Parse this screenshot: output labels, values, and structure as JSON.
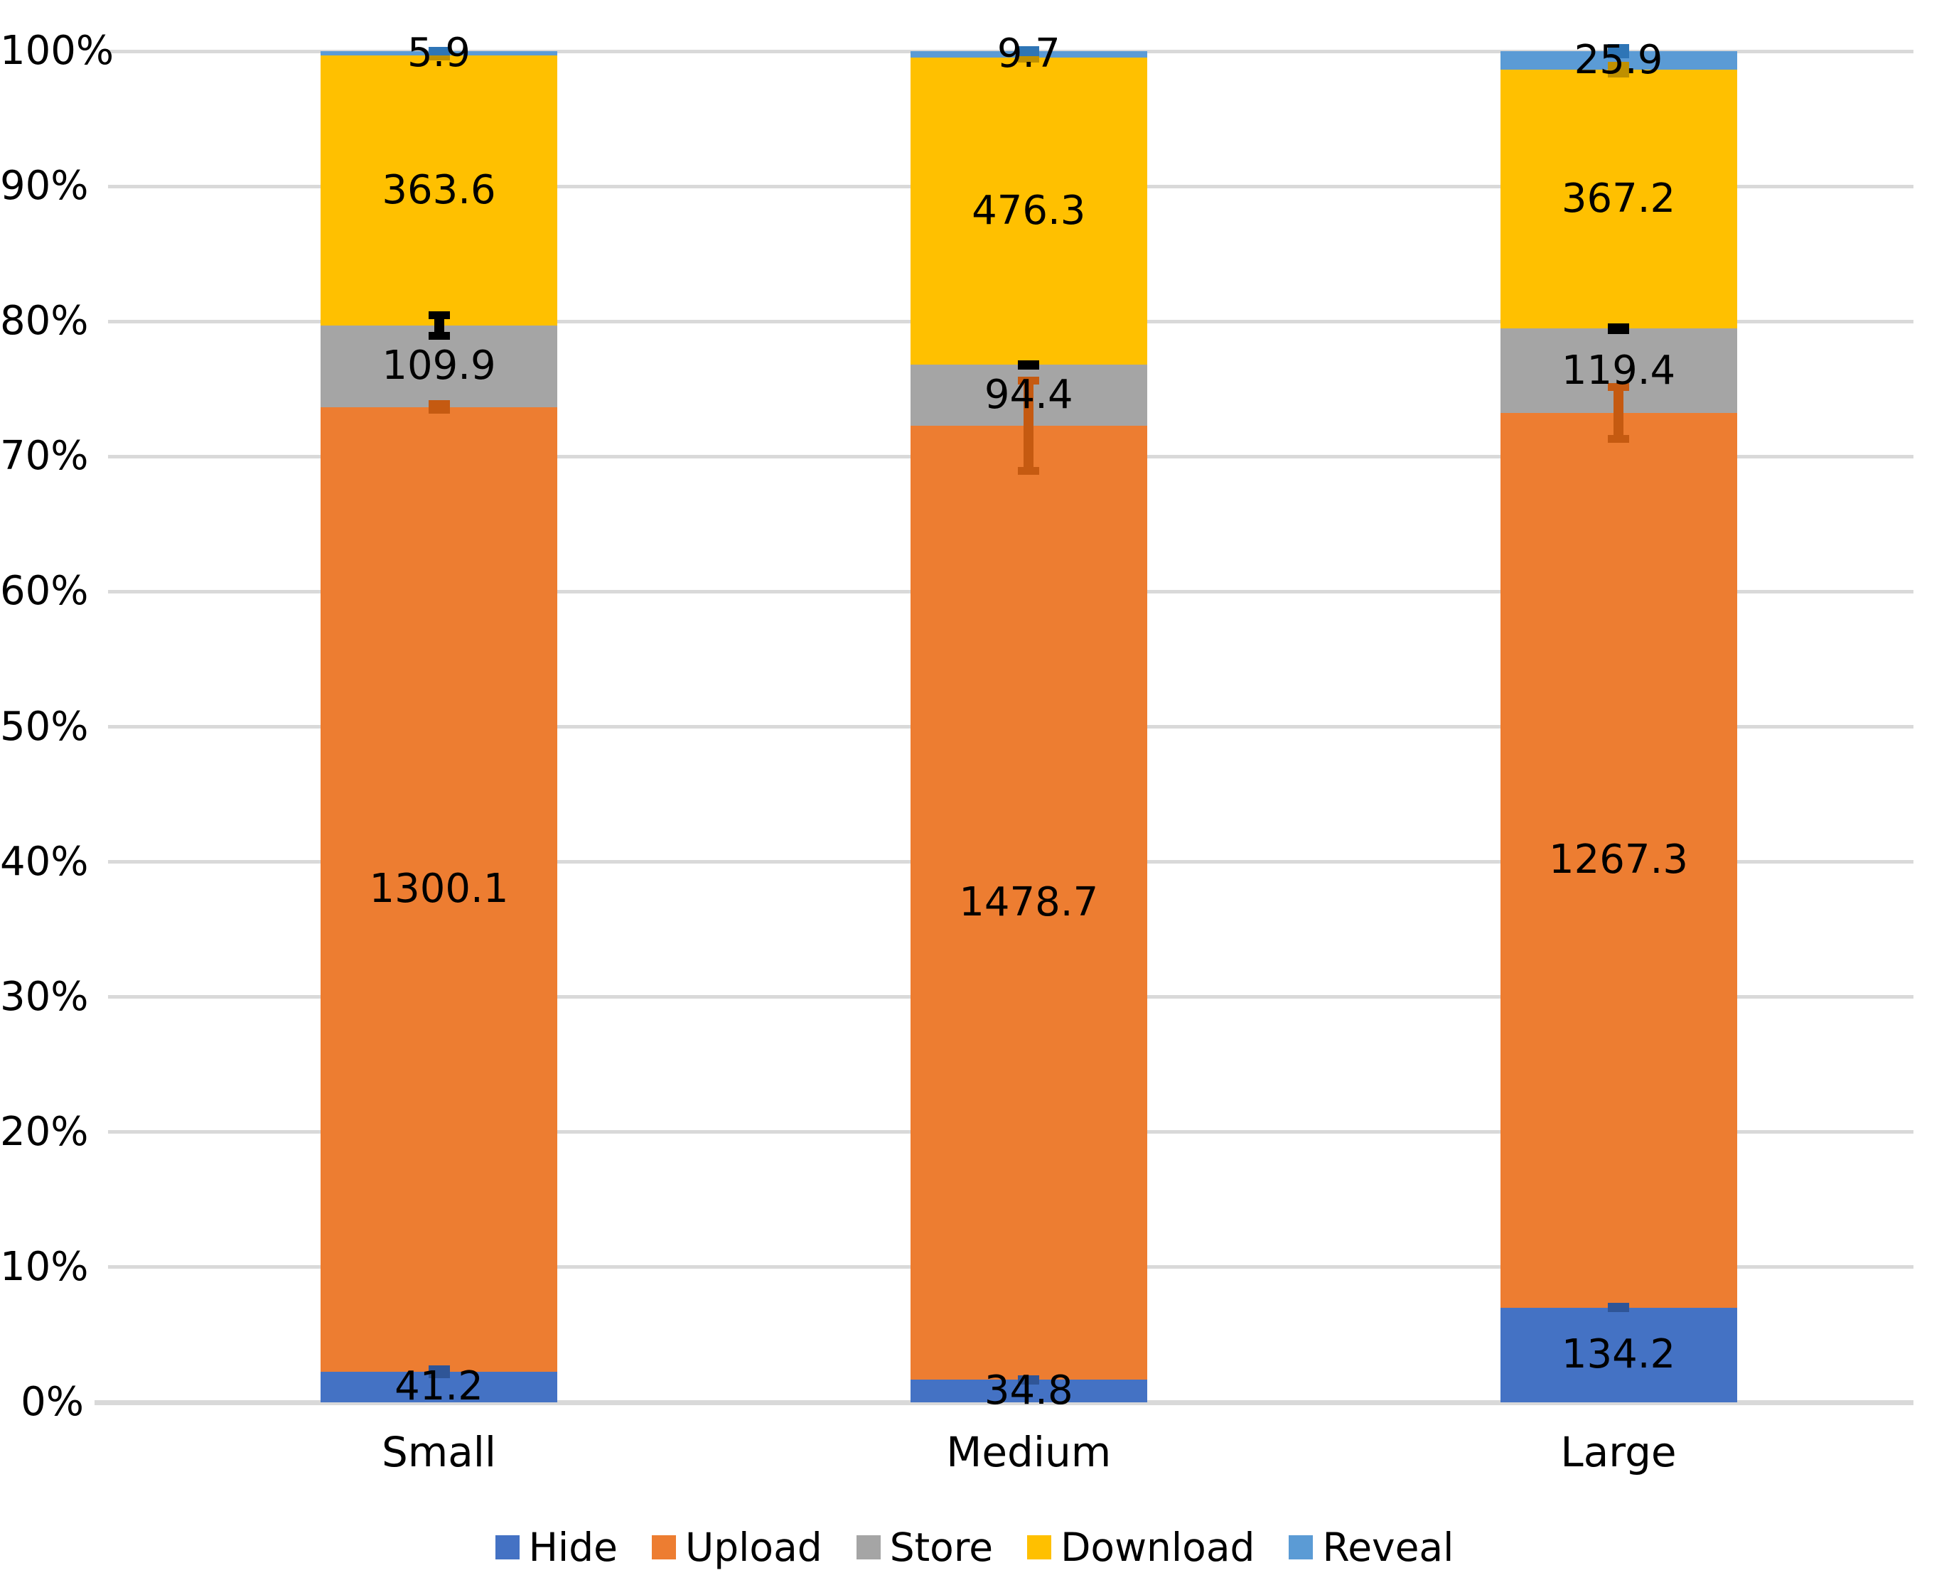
{
  "chart_data": {
    "type": "bar",
    "variant": "100%-stacked-column-with-error-bars",
    "title": "",
    "xlabel": "",
    "ylabel": "",
    "categories": [
      "Small",
      "Medium",
      "Large"
    ],
    "series": [
      {
        "name": "Hide",
        "color": "#4472C4",
        "error_color": "#2F5597",
        "values": [
          41.2,
          34.8,
          134.2
        ],
        "labels": [
          "41.2",
          "34.8",
          "134.2"
        ],
        "error_half_pct": [
          0.16,
          0.05,
          0.05
        ]
      },
      {
        "name": "Upload",
        "color": "#ED7D31",
        "error_color": "#C55A11",
        "values": [
          1300.1,
          1478.7,
          1267.3
        ],
        "labels": [
          "1300.1",
          "1478.7",
          "1267.3"
        ],
        "error_half_pct": [
          0.21,
          3.34,
          1.9
        ]
      },
      {
        "name": "Store",
        "color": "#A5A5A5",
        "error_color": "#000000",
        "values": [
          109.9,
          94.4,
          119.4
        ],
        "labels": [
          "109.9",
          "94.4",
          "119.4"
        ],
        "error_half_pct": [
          0.76,
          0.05,
          0.1
        ]
      },
      {
        "name": "Download",
        "color": "#FFC000",
        "error_color": "#BF9000",
        "values": [
          363.6,
          476.3,
          367.2
        ],
        "labels": [
          "363.6",
          "476.3",
          "367.2"
        ],
        "error_half_pct": [
          0.08,
          0.08,
          0.3
        ]
      },
      {
        "name": "Reveal",
        "color": "#5B9BD5",
        "error_color": "#2E75B6",
        "values": [
          5.9,
          9.7,
          25.9
        ],
        "labels": [
          "5.9",
          "9.7",
          "25.9"
        ],
        "error_half_pct": [
          0.05,
          0.1,
          0.24
        ]
      }
    ],
    "y_axis": {
      "min": 0,
      "max": 100,
      "tick_step": 10,
      "tick_labels": [
        "0%",
        "10%",
        "20%",
        "30%",
        "40%",
        "50%",
        "60%",
        "70%",
        "80%",
        "90%",
        "100%"
      ],
      "gridlines": true,
      "gridline_color": "#D9D9D9"
    },
    "legend_position": "bottom",
    "legend_items": [
      "Hide",
      "Upload",
      "Store",
      "Download",
      "Reveal"
    ]
  }
}
